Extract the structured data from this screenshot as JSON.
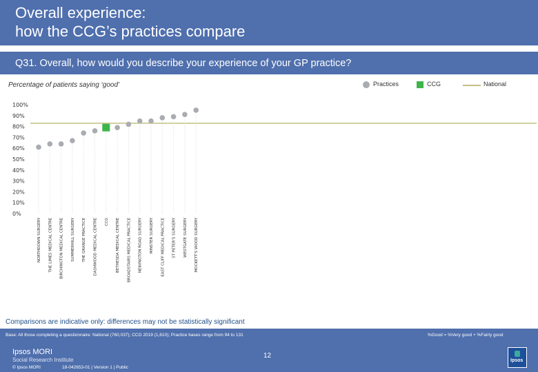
{
  "header": {
    "title": "Overall experience:\nhow the CCG’s practices compare"
  },
  "question": "Q31. Overall, how would you describe your experience of your GP practice?",
  "subtitle": "Percentage of patients saying ‘good’",
  "legend": {
    "practices": "Practices",
    "ccg": "CCG",
    "national": "National"
  },
  "colors": {
    "header": "#4f6fad",
    "practice": "#a9acb0",
    "ccg": "#3db54a",
    "national": "#c2c080",
    "note": "#1f4e8a"
  },
  "chart_data": {
    "type": "scatter",
    "y_ticks": [
      "0%",
      "10%",
      "20%",
      "30%",
      "40%",
      "50%",
      "60%",
      "70%",
      "80%",
      "90%",
      "100%"
    ],
    "ylim": [
      0,
      100
    ],
    "national": 83,
    "categories": [
      "NORTHDOWN SURGERY",
      "THE LIMES MEDICAL CENTRE",
      "BIRCHINGTON MEDICAL CENTRE",
      "SUMMERHILL SURGERY",
      "THE GRANGE PRACTICE",
      "DASHWOOD MEDICAL CENTRE",
      "CCG",
      "BETHESDA MEDICAL CENTRE",
      "BROADSTAIRS MEDICAL PRACTICE",
      "NEWINGTON ROAD SURGERY",
      "MINSTER SURGERY",
      "EAST CLIFF MEDICAL PRACTICE",
      "ST PETER'S SURGERY",
      "WESTGATE SURGERY",
      "MOCKETT'S WOOD SURGERY"
    ],
    "values": [
      61,
      64,
      64,
      67,
      74,
      76,
      79,
      79,
      82,
      85,
      85,
      88,
      89,
      91,
      95
    ]
  },
  "note": "Comparisons are indicative only: differences may not be statistically significant",
  "footer": {
    "base": "Base: All those completing a questionnaire: National (760,037); CCG 2019 (1,610); Practice bases range from 94 to 131",
    "definition": "%Good = %Very good + %Fairly good",
    "brand": "Ipsos MORI",
    "brand_sub": "Social Research Institute",
    "copyright": "© Ipsos MORI",
    "reference": "18-042653-01 | Version 1 | Public",
    "page": "12",
    "logo": "Ipsos"
  }
}
